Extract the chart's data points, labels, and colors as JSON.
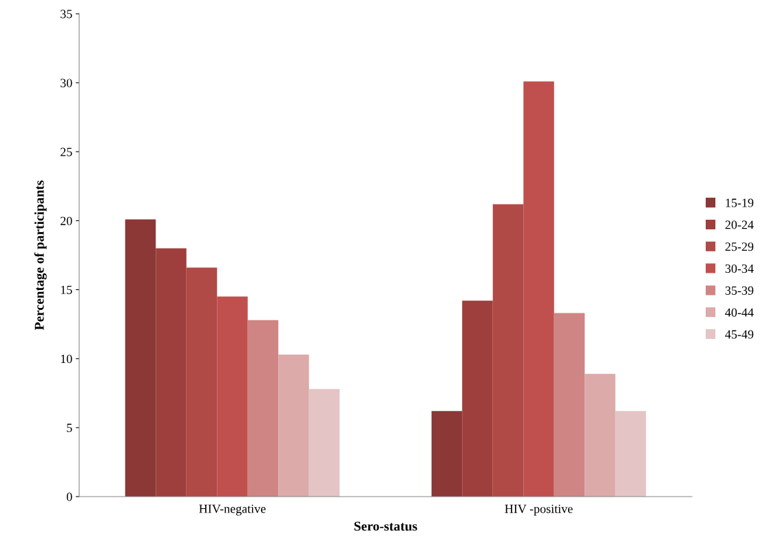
{
  "chart_data": {
    "type": "bar",
    "xlabel": "Sero-status",
    "ylabel": "Percentage of participants",
    "categories": [
      "HIV-negative",
      "HIV -positive"
    ],
    "series": [
      {
        "name": "15-19",
        "color": "#8b3836",
        "values": [
          20.1,
          6.2
        ]
      },
      {
        "name": "20-24",
        "color": "#9e3f3d",
        "values": [
          18.0,
          14.2
        ]
      },
      {
        "name": "25-29",
        "color": "#b04a46",
        "values": [
          16.6,
          21.2
        ]
      },
      {
        "name": "30-34",
        "color": "#c0504d",
        "values": [
          14.5,
          30.1
        ]
      },
      {
        "name": "35-39",
        "color": "#cf8583",
        "values": [
          12.8,
          13.3
        ]
      },
      {
        "name": "40-44",
        "color": "#dbaaa9",
        "values": [
          10.3,
          8.9
        ]
      },
      {
        "name": "45-49",
        "color": "#e4c4c4",
        "values": [
          7.8,
          6.2
        ]
      }
    ],
    "ylim": [
      0,
      35
    ],
    "yticks": [
      0,
      5,
      10,
      15,
      20,
      25,
      30,
      35
    ],
    "grid": false,
    "legend": "right"
  }
}
